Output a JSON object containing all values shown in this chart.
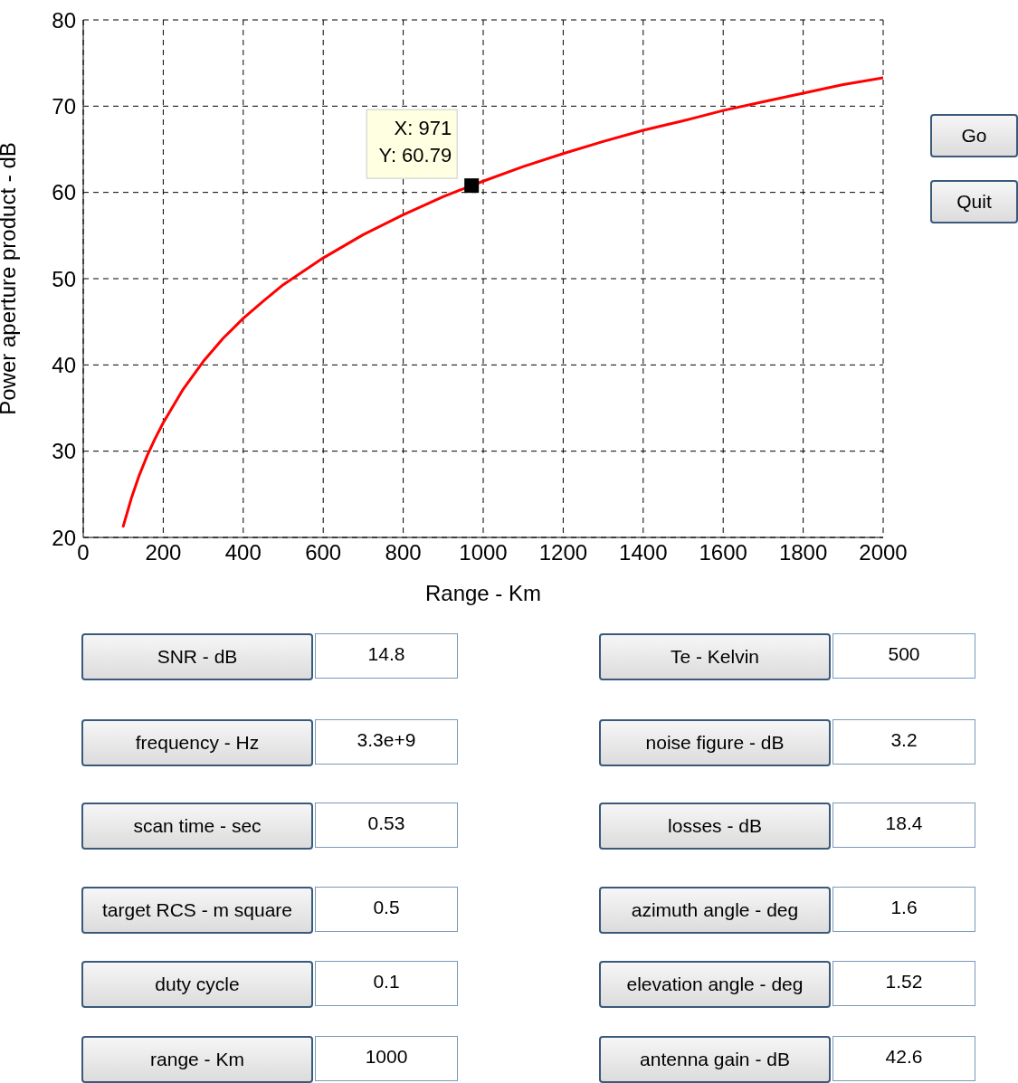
{
  "chart_data": [
    {
      "type": "line",
      "xlabel": "Range - Km",
      "ylabel": "Power aperture product - dB",
      "xlim": [
        0,
        2000
      ],
      "xticks": [
        0,
        200,
        400,
        600,
        800,
        1000,
        1200,
        1400,
        1600,
        1800,
        2000
      ],
      "ylim": [
        20,
        80
      ],
      "yticks": [
        20,
        30,
        40,
        50,
        60,
        70,
        80
      ],
      "grid": true,
      "series": [
        {
          "color": "#ff0000",
          "x": [
            100,
            120,
            140,
            160,
            180,
            200,
            250,
            300,
            350,
            400,
            450,
            500,
            600,
            700,
            800,
            900,
            971,
            1000,
            1100,
            1200,
            1300,
            1400,
            1500,
            1600,
            1700,
            1800,
            1900,
            2000
          ],
          "values": [
            21.3,
            24.5,
            27.2,
            29.5,
            31.5,
            33.3,
            37.2,
            40.4,
            43.1,
            45.4,
            47.4,
            49.3,
            52.4,
            55.1,
            57.4,
            59.5,
            60.8,
            61.3,
            63.0,
            64.5,
            65.9,
            67.2,
            68.3,
            69.5,
            70.5,
            71.5,
            72.5,
            73.3
          ]
        }
      ],
      "annotations": [
        {
          "text": "X: 971\nY: 60.79",
          "x": 971,
          "y": 60.79
        }
      ]
    },
    {
      "type": "other",
      "annotations": [
        "Go",
        "Quit",
        "SNR - dB",
        "14.8",
        "Te - Kelvin",
        "500",
        "frequency - Hz",
        "3.3e+9",
        "noise figure - dB",
        "3.2",
        "scan time - sec",
        "0.53",
        "losses - dB",
        "18.4",
        "target RCS - m square",
        "0.5",
        "azimuth angle - deg",
        "1.6",
        "duty cycle",
        "0.1",
        "elevation angle - deg",
        "1.52",
        "range - Km",
        "1000",
        "antenna gain - dB",
        "42.6"
      ]
    }
  ]
}
